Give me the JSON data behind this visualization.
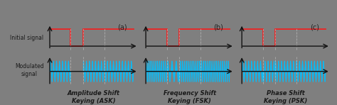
{
  "background_color": "#7f7f7f",
  "panel_labels": [
    "(a)",
    "(b)",
    "(c)"
  ],
  "titles": [
    "Amplitude Shift\nKeying (ASK)",
    "Frequency Shift\nKeying (FSK)",
    "Phase Shift\nKeying (PSK)"
  ],
  "y_label_initial": "Initial signal",
  "y_label_modulated": "Modulated\nsignal",
  "signal_color": "#ee2222",
  "wave_color": "#00c0ff",
  "axis_color": "#111111",
  "label_color": "#1a1a1a",
  "panel_label_color": "#222222",
  "guide_line_color": "#c0c0c0",
  "bits_t": [
    0,
    2.0,
    3.2,
    5.2,
    8.0
  ],
  "bits_v": [
    1,
    0,
    1,
    1
  ],
  "T": 8.0,
  "ask_carrier_freq": 3.5,
  "fsk_hi_freq": 5.5,
  "fsk_lo_freq": 2.5,
  "psk_carrier_freq": 3.5
}
